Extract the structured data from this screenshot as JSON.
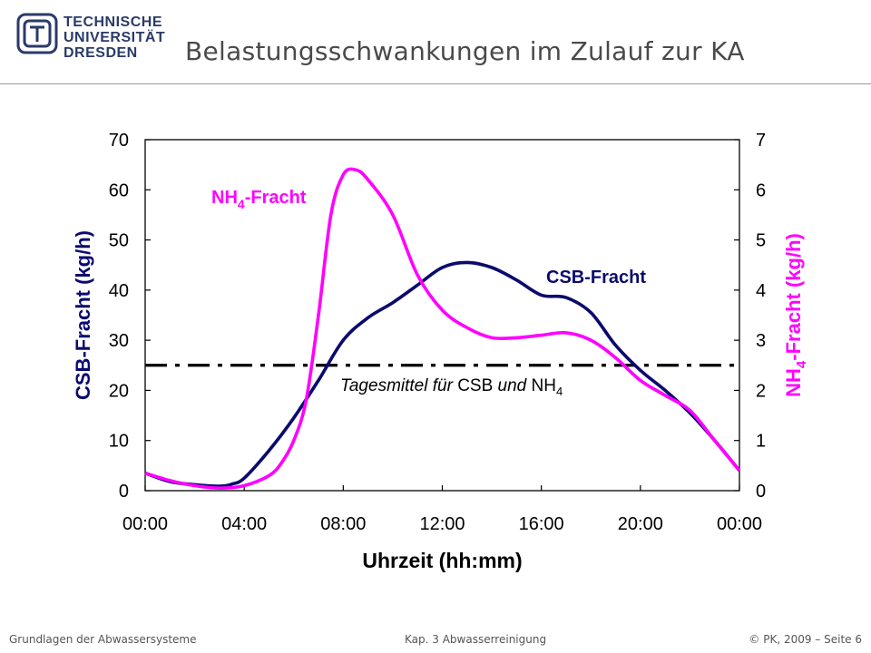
{
  "header": {
    "logo_lines": [
      "TECHNISCHE",
      "UNIVERSITÄT",
      "DRESDEN"
    ],
    "title": "Belastungsschwankungen im Zulauf zur KA"
  },
  "footer": {
    "left": "Grundlagen der Abwassersysteme",
    "center": "Kap. 3  Abwasserreinigung",
    "right": "© PK, 2009 – Seite 6"
  },
  "chart_data": {
    "type": "line",
    "x_unit": "hours",
    "xlim": [
      0,
      24
    ],
    "x_ticks": [
      0,
      4,
      8,
      12,
      16,
      20,
      24
    ],
    "x_tick_labels": [
      "00:00",
      "04:00",
      "08:00",
      "12:00",
      "16:00",
      "20:00",
      "00:00"
    ],
    "xlabel": "Uhrzeit  (hh:mm)",
    "ylabel_left": "CSB-Fracht  (kg/h)",
    "ylabel_right_parts": [
      "NH",
      "4",
      "-Fracht  (kg/h)"
    ],
    "ylim_left": [
      0,
      70
    ],
    "ylim_right": [
      0,
      7
    ],
    "y_ticks_left": [
      0,
      10,
      20,
      30,
      40,
      50,
      60,
      70
    ],
    "y_ticks_right": [
      0,
      1,
      2,
      3,
      4,
      5,
      6,
      7
    ],
    "grid": false,
    "colors": {
      "csb": "#0a0a6e",
      "nh4": "#ff00ff",
      "mean": "#000000"
    },
    "series": [
      {
        "name": "CSB-Fracht",
        "axis": "left",
        "x": [
          0,
          1,
          2,
          3,
          3.5,
          4,
          5,
          6,
          7,
          8,
          9,
          10,
          11,
          12,
          13,
          14,
          15,
          16,
          17,
          18,
          19,
          20,
          21,
          22,
          23,
          24
        ],
        "y": [
          3.5,
          1.8,
          1.2,
          0.9,
          1.3,
          2.5,
          8.0,
          14.5,
          22.0,
          30.0,
          34.5,
          37.5,
          41.0,
          44.5,
          45.5,
          44.5,
          42.0,
          39.0,
          38.5,
          35.5,
          29.0,
          24.0,
          20.0,
          15.5,
          10.0,
          4.0
        ]
      },
      {
        "name": "NH4-Fracht",
        "label_parts": [
          "NH",
          "4",
          "-Fracht"
        ],
        "axis": "right",
        "x": [
          0,
          1,
          2,
          3,
          4,
          5,
          5.5,
          6,
          6.5,
          7,
          7.5,
          8,
          8.5,
          9,
          10,
          11,
          12,
          13,
          14,
          15,
          16,
          17,
          18,
          19,
          20,
          21,
          22,
          23,
          24
        ],
        "y": [
          0.35,
          0.2,
          0.1,
          0.05,
          0.1,
          0.3,
          0.55,
          1.0,
          1.8,
          3.5,
          5.5,
          6.3,
          6.4,
          6.2,
          5.5,
          4.3,
          3.6,
          3.25,
          3.05,
          3.05,
          3.1,
          3.15,
          3.0,
          2.65,
          2.2,
          1.9,
          1.6,
          1.0,
          0.4
        ]
      }
    ],
    "mean_line": {
      "axis": "left",
      "y": 25,
      "style": "dash-dot",
      "label_parts": [
        "Tagesmittel für ",
        "CSB",
        " und ",
        "NH",
        "4"
      ]
    }
  }
}
